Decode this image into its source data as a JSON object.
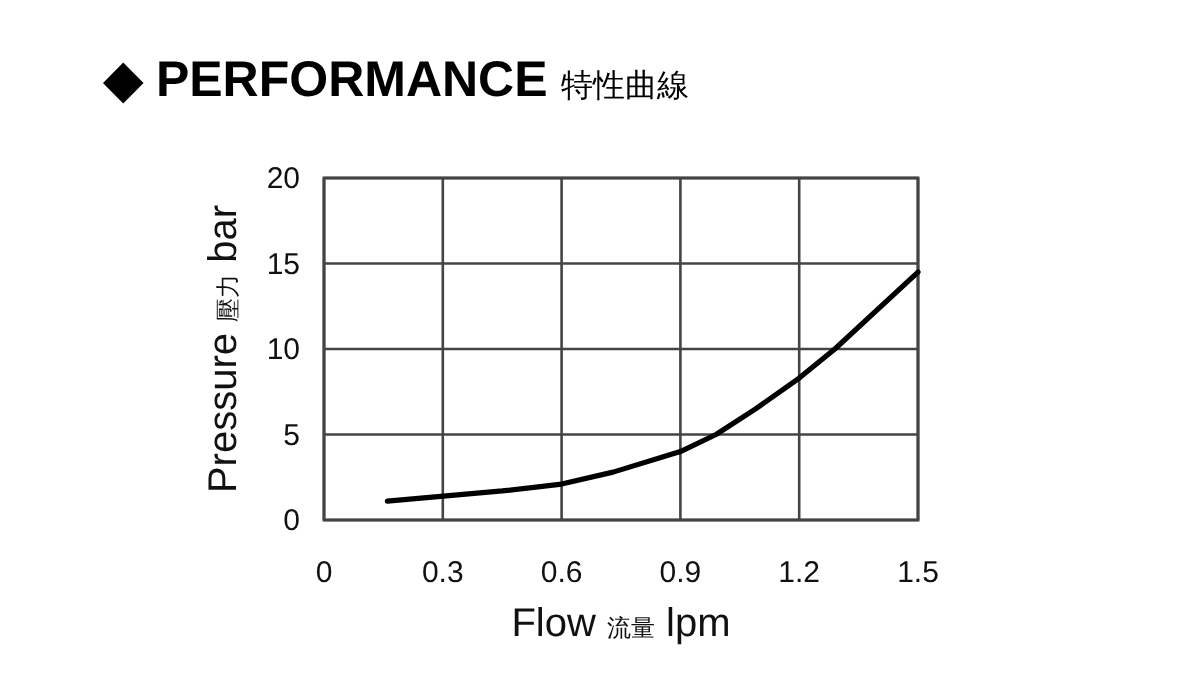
{
  "chart_data": {
    "type": "line",
    "title": "◆ PERFORMANCE 特性曲線",
    "xlabel": "Flow 流量 lpm",
    "ylabel": "Pressure 壓力 bar",
    "xlim": [
      0,
      1.5
    ],
    "xticks": [
      0,
      0.3,
      0.6,
      0.9,
      1.2,
      1.5
    ],
    "ylim": [
      0,
      20
    ],
    "yticks": [
      0,
      5,
      10,
      15,
      20
    ],
    "grid": true,
    "marker": "none",
    "line_style": "solid",
    "series": [
      {
        "color": "#000000",
        "x": [
          0.16,
          0.45,
          0.6,
          0.73,
          0.9,
          0.99,
          1.09,
          1.2,
          1.29,
          1.5
        ],
        "values": [
          1.1,
          1.7,
          2.1,
          2.8,
          4.0,
          5.0,
          6.5,
          8.3,
          10.0,
          14.5
        ]
      }
    ]
  }
}
